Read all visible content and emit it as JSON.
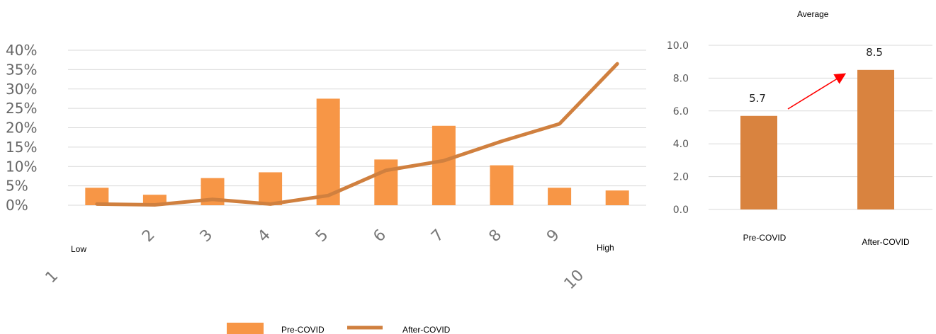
{
  "chart_data": [
    {
      "type": "bar",
      "categories": [
        "1",
        "2",
        "3",
        "4",
        "5",
        "6",
        "7",
        "8",
        "9",
        "10"
      ],
      "series": [
        {
          "name": "Pre-COVID",
          "type": "bar",
          "values": [
            4.5,
            2.7,
            7.0,
            8.5,
            27.5,
            11.8,
            20.5,
            10.3,
            4.5,
            3.8
          ]
        },
        {
          "name": "After-COVID",
          "type": "line",
          "values": [
            0.3,
            0.1,
            1.5,
            0.3,
            2.5,
            9.0,
            11.5,
            16.5,
            21.0,
            36.5
          ]
        }
      ],
      "yticks": [
        "0%",
        "5%",
        "10%",
        "15%",
        "20%",
        "25%",
        "30%",
        "35%",
        "40%"
      ],
      "ylim": [
        0,
        40
      ],
      "xlabel_left": "Low",
      "xlabel_right": "High",
      "grid": true,
      "legend_position": "bottom",
      "colors": {
        "bar": "#f79646",
        "line": "#d0803f"
      }
    },
    {
      "type": "bar",
      "title": "Average",
      "categories": [
        "Pre-COVID",
        "After-COVID"
      ],
      "values": [
        5.7,
        8.5
      ],
      "data_labels": [
        "5.7",
        "8.5"
      ],
      "yticks": [
        "0.0",
        "2.0",
        "4.0",
        "6.0",
        "8.0",
        "10.0"
      ],
      "ylim": [
        0,
        10
      ],
      "grid": true,
      "colors": {
        "bar": "#d9833f",
        "arrow": "#ff0000"
      }
    }
  ]
}
